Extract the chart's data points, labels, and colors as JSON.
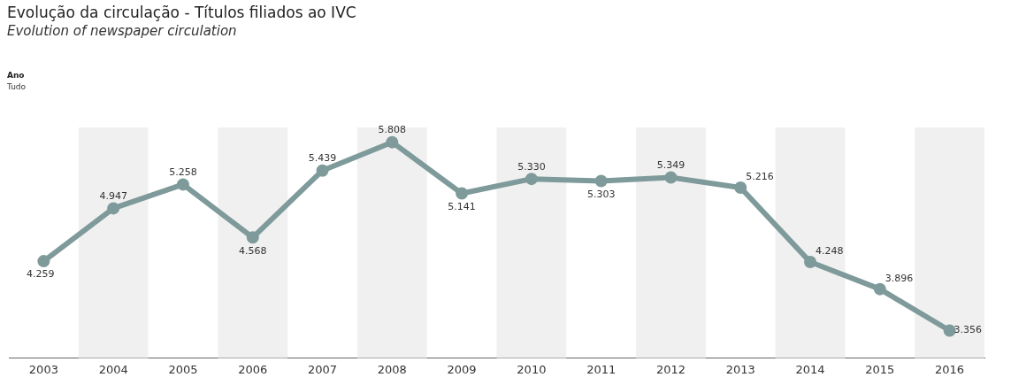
{
  "chart_data": {
    "type": "line",
    "title": "Evolução da circulação - Títulos filiados ao IVC",
    "subtitle": "Evolution of newspaper circulation",
    "annotations": [
      "Ano",
      "Tudo"
    ],
    "categories": [
      "2003",
      "2004",
      "2005",
      "2006",
      "2007",
      "2008",
      "2009",
      "2010",
      "2011",
      "2012",
      "2013",
      "2014",
      "2015",
      "2016"
    ],
    "values": [
      4.259,
      4.947,
      5.258,
      4.568,
      5.439,
      5.808,
      5.141,
      5.33,
      5.303,
      5.349,
      5.216,
      4.248,
      3.896,
      3.356
    ],
    "value_labels": [
      "4.259",
      "4.947",
      "5.258",
      "4.568",
      "5.439",
      "5.808",
      "5.141",
      "5.330",
      "5.303",
      "5.349",
      "5.216",
      "4.248",
      "3.896",
      "3.356"
    ],
    "color": "#7f9a9a",
    "marker": "circle",
    "grid": false,
    "legend": false,
    "bands": [
      {
        "axis": "x",
        "from": "2004",
        "to": "2004",
        "color": "#f0f0f0"
      },
      {
        "axis": "x",
        "from": "2006",
        "to": "2006",
        "color": "#f0f0f0"
      },
      {
        "axis": "x",
        "from": "2008",
        "to": "2008",
        "color": "#f0f0f0"
      },
      {
        "axis": "x",
        "from": "2010",
        "to": "2010",
        "color": "#f0f0f0"
      },
      {
        "axis": "x",
        "from": "2012",
        "to": "2012",
        "color": "#f0f0f0"
      },
      {
        "axis": "x",
        "from": "2014",
        "to": "2014",
        "color": "#f0f0f0"
      },
      {
        "axis": "x",
        "from": "2016",
        "to": "2016",
        "color": "#f0f0f0"
      }
    ]
  }
}
